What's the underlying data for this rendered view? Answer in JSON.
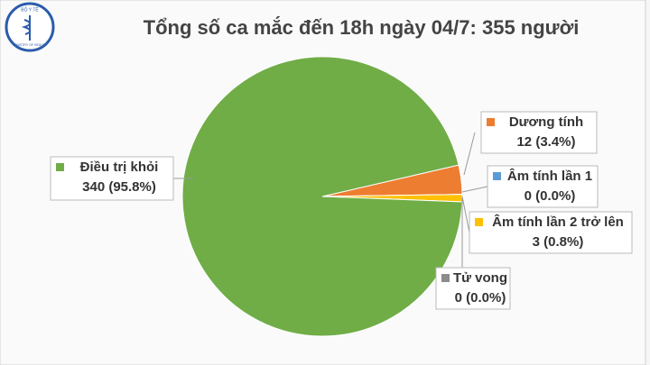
{
  "logo": {
    "top": "BỘ Y TẾ",
    "bottom": "MINISTRY OF HEALTH"
  },
  "chart_data": {
    "type": "pie",
    "title": "Tổng số ca mắc đến 18h ngày 04/7: 355 người",
    "categories": [
      "Dương tính",
      "Âm tính lần 1",
      "Âm tính lần 2 trở lên",
      "Tử vong",
      "Điều trị khỏi"
    ],
    "values": [
      12,
      0,
      3,
      0,
      340
    ],
    "value_labels": [
      "12 (3.4%)",
      "0 (0.0%)",
      "3 (0.8%)",
      "0 (0.0%)",
      "340 (95.8%)"
    ],
    "colors": [
      "#ed7d31",
      "#5b9bd5",
      "#ffc000",
      "#8c8c8c",
      "#70ad47"
    ]
  }
}
